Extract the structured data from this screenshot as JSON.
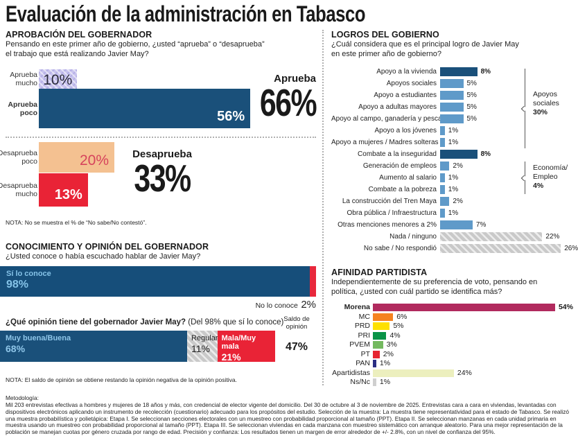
{
  "title": "Evaluación de la administración en Tabasco",
  "colors": {
    "dark_blue": "#1a507a",
    "light_blue": "#5f9ac9",
    "red": "#e92336",
    "tan": "#f4c191",
    "purple_hatch": "#c9c4ee",
    "gray_hatch": "#c9c9c9",
    "know_red": "#e8283c",
    "light_blue_text": "#85c3e8"
  },
  "approval": {
    "heading": "APROBACIÓN DEL GOBERNADOR",
    "question": "Pensando en este primer año de gobierno, ¿usted “aprueba” o “desaprueba”\nel trabajo que está realizando Javier May?",
    "rows": [
      {
        "label": "Aprueba mucho",
        "value": "10%",
        "pct": 10
      },
      {
        "label": "Aprueba poco",
        "value": "56%",
        "pct": 56
      },
      {
        "label": "Desaprueba poco",
        "value": "20%",
        "pct": 20
      },
      {
        "label": "Desaprueba mucho",
        "value": "13%",
        "pct": 13
      }
    ],
    "aprueba_label": "Aprueba",
    "aprueba_total": "66%",
    "desaprueba_label": "Desaprueba",
    "desaprueba_total": "33%",
    "note": "NOTA: No se muestra el % de “No sabe/No contestó”."
  },
  "conocimiento": {
    "heading": "CONOCIMIENTO Y OPINIÓN DEL GOBERNADOR",
    "question": "¿Usted conoce o había escuchado hablar de Javier May?",
    "knows_label": "Sí lo conoce",
    "knows_value": "98%",
    "knows_pct": 98,
    "notknows_label": "No lo conoce",
    "notknows_value": "2%",
    "notknows_pct": 2,
    "opinion_question": "¿Qué opinión tiene del gobernador Javier May?",
    "opinion_question_paren": " (Del 98% que sí lo conoce)",
    "saldo_label": "Saldo de\nopinión",
    "saldo_value": "47%",
    "segments": [
      {
        "label": "Muy buena/Buena",
        "value": "68%",
        "pct": 68,
        "type": "blue"
      },
      {
        "label": "Regular",
        "value": "11%",
        "pct": 11,
        "type": "gray"
      },
      {
        "label": "Mala/Muy mala",
        "value": "21%",
        "pct": 21,
        "type": "red"
      }
    ],
    "note": "NOTA: El saldo de opinión se obtiene restando la opinión negativa de la opinión positiva."
  },
  "logros": {
    "heading": "LOGROS DEL GOBIERNO",
    "question": "¿Cuál considera que es el principal logro de Javier May\nen este primer año de gobierno?",
    "rows": [
      {
        "label": "Apoyo a la vivienda",
        "value": "8%",
        "pct": 8,
        "type": "dark",
        "value_bold": true
      },
      {
        "label": "Apoyos sociales",
        "value": "5%",
        "pct": 5,
        "type": "light"
      },
      {
        "label": "Apoyo a estudiantes",
        "value": "5%",
        "pct": 5,
        "type": "light"
      },
      {
        "label": "Apoyo a adultas mayores",
        "value": "5%",
        "pct": 5,
        "type": "light"
      },
      {
        "label": "Apoyo al campo, ganadería y pesca",
        "value": "5%",
        "pct": 5,
        "type": "light"
      },
      {
        "label": "Apoyo a los jóvenes",
        "value": "1%",
        "pct": 1,
        "type": "light"
      },
      {
        "label": "Apoyo a mujeres / Madres solteras",
        "value": "1%",
        "pct": 1,
        "type": "light"
      },
      {
        "label": "Combate a la inseguridad",
        "value": "8%",
        "pct": 8,
        "type": "dark",
        "value_bold": true
      },
      {
        "label": "Generación de empleos",
        "value": "2%",
        "pct": 2,
        "type": "light"
      },
      {
        "label": "Aumento al salario",
        "value": "1%",
        "pct": 1,
        "type": "light"
      },
      {
        "label": "Combate a la pobreza",
        "value": "1%",
        "pct": 1,
        "type": "light"
      },
      {
        "label": "La construcción del Tren Maya",
        "value": "2%",
        "pct": 2,
        "type": "light"
      },
      {
        "label": "Obra pública / Infraestructura",
        "value": "1%",
        "pct": 1,
        "type": "light"
      },
      {
        "label": "Otras menciones menores a 2%",
        "value": "7%",
        "pct": 7,
        "type": "light"
      },
      {
        "label": "Nada / ninguno",
        "value": "22%",
        "pct": 22,
        "type": "hatch"
      },
      {
        "label": "No sabe / No respondió",
        "value": "26%",
        "pct": 26,
        "type": "hatch"
      }
    ],
    "brackets": [
      {
        "line1": "Apoyos",
        "line2": "sociales",
        "value": "30%"
      },
      {
        "line1": "Economía/",
        "line2": "Empleo",
        "value": "4%"
      }
    ]
  },
  "afinidad": {
    "heading": "AFINIDAD PARTIDISTA",
    "question": "Independientemente de su preferencia de voto, pensando en\npolítica, ¿usted con cuál partido se identifica más?",
    "rows": [
      {
        "label": "Morena",
        "value": "54%",
        "pct": 54,
        "color": "#b12a5e",
        "hatch": true,
        "bold": true
      },
      {
        "label": "MC",
        "value": "6%",
        "pct": 6,
        "color": "#f58220",
        "hatch": true
      },
      {
        "label": "PRD",
        "value": "5%",
        "pct": 5,
        "color": "#fee000",
        "hatch": true
      },
      {
        "label": "PRI",
        "value": "4%",
        "pct": 4,
        "color": "#0a9447",
        "hatch": false
      },
      {
        "label": "PVEM",
        "value": "3%",
        "pct": 3,
        "color": "#74b95f",
        "hatch": false
      },
      {
        "label": "PT",
        "value": "2%",
        "pct": 2,
        "color": "#e62430",
        "hatch": true
      },
      {
        "label": "PAN",
        "value": "1%",
        "pct": 1,
        "color": "#2b2e83",
        "hatch": false
      },
      {
        "label": "Apartidistas",
        "value": "24%",
        "pct": 24,
        "color": "#ecefbe",
        "hatch": true
      },
      {
        "label": "Ns/Nc",
        "value": "1%",
        "pct": 1,
        "color": "#cfcfcf",
        "hatch": false
      }
    ]
  },
  "methodology": {
    "label": "Metodología:",
    "text": "Mil 203 entrevistas efectivas a hombres y mujeres de 18 años y más, con credencial de elector vigente del domicilio. Del 30 de octubre al 3 de noviembre de 2025. Entrevistas cara a cara en viviendas, levantadas con dispositivos electrónicos aplicando un instrumento de recolección (cuestionario) adecuado para los propósitos del estudio. Selección de la muestra: La muestra tiene representatividad para el estado de Tabasco. Se realizó una muestra probabilística y polietápica: Etapa I. Se seleccionan secciones electorales con un muestreo con probabilidad proporcional al tamaño (PPT). Etapa II. Se seleccionan manzanas en cada unidad primaria en muestra usando un muestreo con probabilidad proporcional al tamaño (PPT). Etapa III. Se seleccionan viviendas en cada manzana con muestreo sistemático con arranque aleatorio. Para una mejor representación de la población se manejan cuotas por género cruzada por rango de edad. Precisión y confianza: Los resultados tienen un margen de error alrededor de +/- 2.8%, con un nivel de confianza del 95%."
  },
  "chart_data": [
    {
      "type": "bar",
      "title": "Aprobación del gobernador",
      "orientation": "horizontal",
      "categories": [
        "Aprueba mucho",
        "Aprueba poco",
        "Desaprueba poco",
        "Desaprueba mucho"
      ],
      "values": [
        10,
        56,
        20,
        13
      ],
      "totals": {
        "Aprueba": 66,
        "Desaprueba": 33
      },
      "xlabel": "",
      "ylabel": "",
      "xlim": [
        0,
        60
      ],
      "grid": false
    },
    {
      "type": "bar",
      "title": "Conocimiento del gobernador",
      "orientation": "horizontal",
      "stacked": true,
      "categories": [
        "Sí lo conoce",
        "No lo conoce"
      ],
      "values": [
        98,
        2
      ],
      "xlim": [
        0,
        100
      ],
      "grid": false
    },
    {
      "type": "bar",
      "title": "Opinión del gobernador Javier May (del 98% que sí lo conoce)",
      "orientation": "horizontal",
      "stacked": true,
      "categories": [
        "Muy buena/Buena",
        "Regular",
        "Mala/Muy mala"
      ],
      "values": [
        68,
        11,
        21
      ],
      "saldo_de_opinion": 47,
      "xlim": [
        0,
        100
      ],
      "grid": false
    },
    {
      "type": "bar",
      "title": "Logros del gobierno",
      "orientation": "horizontal",
      "categories": [
        "Apoyo a la vivienda",
        "Apoyos sociales",
        "Apoyo a estudiantes",
        "Apoyo a adultas mayores",
        "Apoyo al campo, ganadería y pesca",
        "Apoyo a los jóvenes",
        "Apoyo a mujeres / Madres solteras",
        "Combate a la inseguridad",
        "Generación de empleos",
        "Aumento al salario",
        "Combate a la pobreza",
        "La construcción del Tren Maya",
        "Obra pública / Infraestructura",
        "Otras menciones menores a 2%",
        "Nada / ninguno",
        "No sabe / No respondió"
      ],
      "values": [
        8,
        5,
        5,
        5,
        5,
        1,
        1,
        8,
        2,
        1,
        1,
        2,
        1,
        7,
        22,
        26
      ],
      "groups": [
        {
          "label": "Apoyos sociales",
          "value": 30,
          "categories_span": [
            0,
            6
          ]
        },
        {
          "label": "Economía/Empleo",
          "value": 4,
          "categories_span": [
            8,
            10
          ]
        }
      ],
      "xlim": [
        0,
        30
      ],
      "grid": false
    },
    {
      "type": "bar",
      "title": "Afinidad partidista",
      "orientation": "horizontal",
      "categories": [
        "Morena",
        "MC",
        "PRD",
        "PRI",
        "PVEM",
        "PT",
        "PAN",
        "Apartidistas",
        "Ns/Nc"
      ],
      "values": [
        54,
        6,
        5,
        4,
        3,
        2,
        1,
        24,
        1
      ],
      "xlim": [
        0,
        60
      ],
      "grid": false
    }
  ]
}
